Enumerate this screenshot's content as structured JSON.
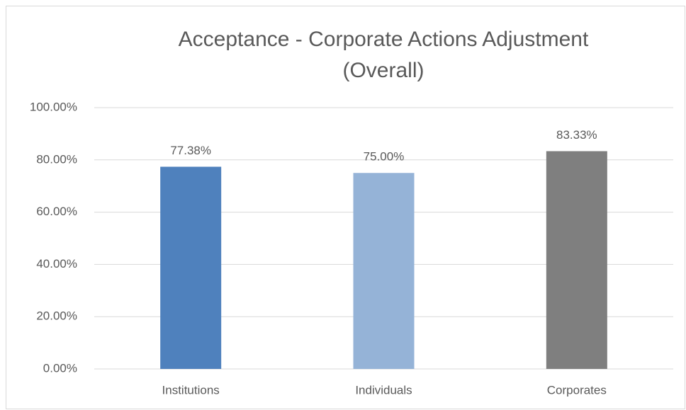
{
  "chart_data": {
    "type": "bar",
    "title": [
      "Acceptance - Corporate Actions Adjustment",
      "(Overall)"
    ],
    "categories": [
      "Institutions",
      "Individuals",
      "Corporates"
    ],
    "values": [
      77.38,
      75.0,
      83.33
    ],
    "value_labels": [
      "77.38%",
      "75.00%",
      "83.33%"
    ],
    "colors": [
      "#4f81bd",
      "#95b3d7",
      "#7f7f7f"
    ],
    "ylim": [
      0,
      100
    ],
    "yticks": [
      {
        "value": 0,
        "label": "0.00%"
      },
      {
        "value": 20,
        "label": "20.00%"
      },
      {
        "value": 40,
        "label": "40.00%"
      },
      {
        "value": 60,
        "label": "60.00%"
      },
      {
        "value": 80,
        "label": "80.00%"
      },
      {
        "value": 100,
        "label": "100.00%"
      }
    ],
    "grid": true
  }
}
